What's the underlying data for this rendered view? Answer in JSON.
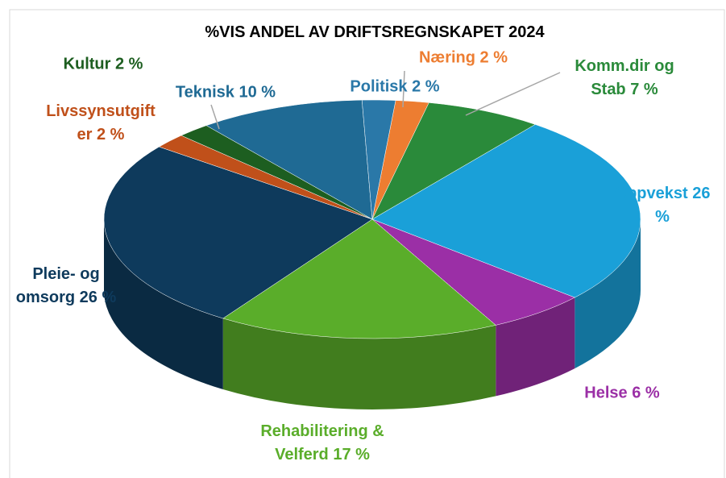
{
  "chart_data": {
    "type": "pie",
    "title": "%VIS ANDEL AV DRIFTSREGNSKAPET 2024",
    "values": [
      2,
      7,
      26,
      6,
      17,
      26,
      2,
      2,
      10,
      2
    ],
    "value_labels": [
      "Næring 2 %",
      "Komm.dir og Stab 7 %",
      "Oppvekst 26 %",
      "Helse 6 %",
      "Rehabilitering & Velferd 17 %",
      "Pleie- og omsorg 26 %",
      "Livssynsutgifter 2 %",
      "Kultur 2 %",
      "Teknisk 10 %",
      "Politisk 2 %"
    ],
    "colors": [
      "#ed7d31",
      "#2a8a3a",
      "#1aa0d8",
      "#9b2fa6",
      "#5aad2a",
      "#0e3a5c",
      "#c0501a",
      "#1d5e20",
      "#1f6a94",
      "#2a78a8"
    ]
  }
}
